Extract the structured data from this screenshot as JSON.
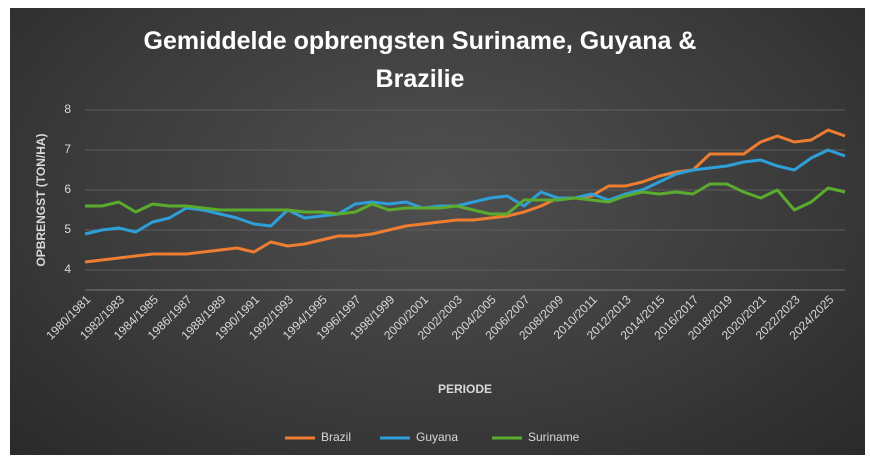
{
  "chart_data": {
    "type": "line",
    "title": "Gemiddelde opbrengsten Suriname, Guyana & Brazilie",
    "y_label": "OPBRENGST (TON/HA)",
    "x_label": "PERIODE",
    "categories": [
      "1980/1981",
      null,
      "1982/1983",
      null,
      "1984/1985",
      null,
      "1986/1987",
      null,
      "1988/1989",
      null,
      "1990/1991",
      null,
      "1992/1993",
      null,
      "1994/1995",
      null,
      "1996/1997",
      null,
      "1998/1999",
      null,
      "2000/2001",
      null,
      "2002/2003",
      null,
      "2004/2005",
      null,
      "2006/2007",
      null,
      "2008/2009",
      null,
      "2010/2011",
      null,
      "2012/2013",
      null,
      "2014/2015",
      null,
      "2016/2017",
      null,
      "2018/2019",
      null,
      "2020/2021",
      null,
      "2022/2023",
      null,
      "2024/2025",
      null
    ],
    "series": [
      {
        "name": "Brazil",
        "color": "#ed7d31",
        "values": [
          4.2,
          4.25,
          4.3,
          4.35,
          4.4,
          4.4,
          4.4,
          4.45,
          4.5,
          4.55,
          4.45,
          4.7,
          4.6,
          4.65,
          4.75,
          4.85,
          4.85,
          4.9,
          5.0,
          5.1,
          5.15,
          5.2,
          5.25,
          5.25,
          5.3,
          5.35,
          5.45,
          5.6,
          5.8,
          5.8,
          5.85,
          6.1,
          6.1,
          6.2,
          6.35,
          6.45,
          6.5,
          6.9,
          6.9,
          6.9,
          7.2,
          7.35,
          7.2,
          7.25,
          7.5,
          7.35
        ]
      },
      {
        "name": "Guyana",
        "color": "#2e9fd8",
        "values": [
          4.9,
          5.0,
          5.05,
          4.95,
          5.2,
          5.3,
          5.55,
          5.5,
          5.4,
          5.3,
          5.15,
          5.1,
          5.5,
          5.3,
          5.35,
          5.4,
          5.65,
          5.7,
          5.65,
          5.7,
          5.55,
          5.6,
          5.6,
          5.7,
          5.8,
          5.85,
          5.6,
          5.95,
          5.8,
          5.8,
          5.9,
          5.75,
          5.9,
          6.0,
          6.2,
          6.4,
          6.5,
          6.55,
          6.6,
          6.7,
          6.75,
          6.6,
          6.5,
          6.8,
          7.0,
          6.85
        ]
      },
      {
        "name": "Suriname",
        "color": "#5aab2e",
        "values": [
          5.6,
          5.6,
          5.7,
          5.45,
          5.65,
          5.6,
          5.6,
          5.55,
          5.5,
          5.5,
          5.5,
          5.5,
          5.5,
          5.45,
          5.45,
          5.4,
          5.45,
          5.65,
          5.5,
          5.55,
          5.55,
          5.55,
          5.6,
          5.5,
          5.4,
          5.4,
          5.75,
          5.75,
          5.75,
          5.8,
          5.75,
          5.7,
          5.85,
          5.95,
          5.9,
          5.95,
          5.9,
          6.15,
          6.15,
          5.95,
          5.8,
          6.0,
          5.5,
          5.7,
          6.05,
          5.95
        ]
      }
    ],
    "ylim": [
      3.5,
      8
    ],
    "yticks": [
      4,
      5,
      6,
      7,
      8
    ],
    "grid": true
  }
}
